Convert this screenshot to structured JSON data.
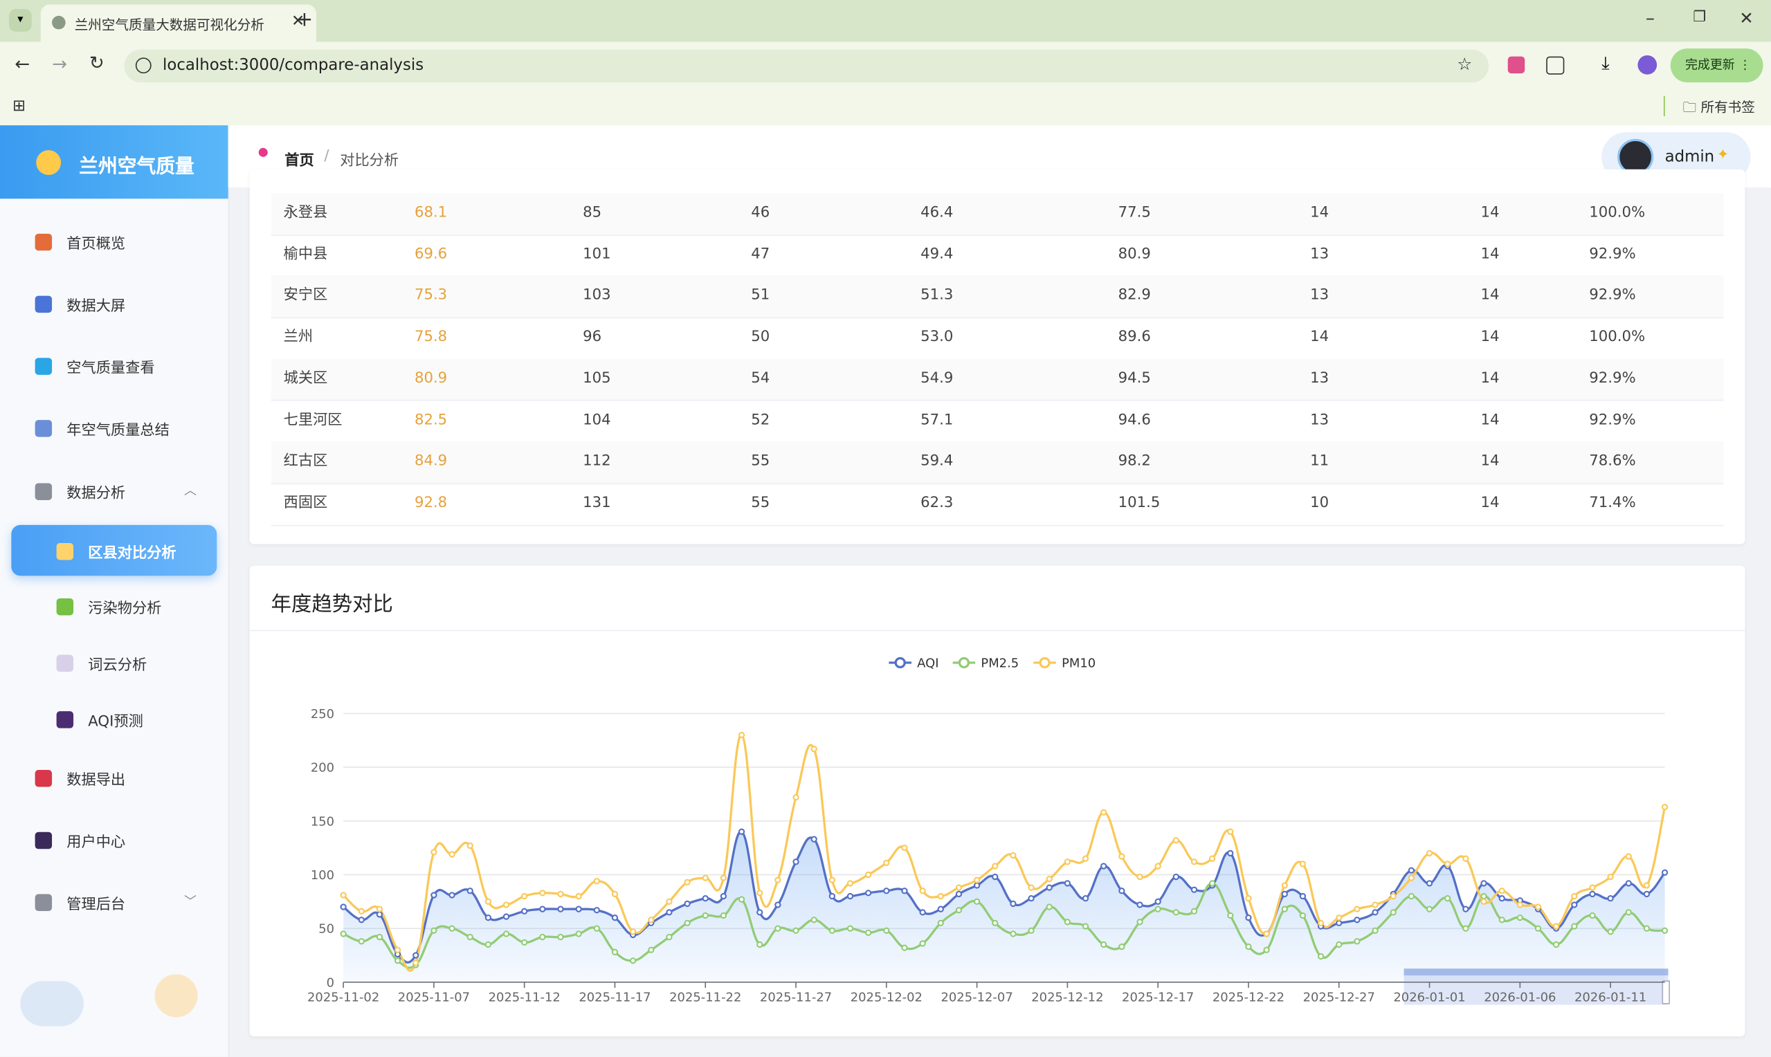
{
  "browser": {
    "tab_title": "兰州空气质量大数据可视化分析",
    "url": "localhost:3000/compare-analysis",
    "update_button": "完成更新",
    "bookmarks": "所有书签"
  },
  "sidebar": {
    "logo": "兰州空气质量",
    "items": [
      "首页概览",
      "数据大屏",
      "空气质量查看",
      "年空气质量总结",
      "数据分析",
      "区县对比分析",
      "污染物分析",
      "词云分析",
      "AQI预测",
      "数据导出",
      "用户中心",
      "管理后台"
    ]
  },
  "header": {
    "breadcrumb": [
      "首页",
      "对比分析"
    ],
    "user": "admin"
  },
  "table": {
    "rows": [
      [
        "永登县",
        "68.1",
        "85",
        "46",
        "46.4",
        "77.5",
        "14",
        "14",
        "100.0%"
      ],
      [
        "榆中县",
        "69.6",
        "101",
        "47",
        "49.4",
        "80.9",
        "13",
        "14",
        "92.9%"
      ],
      [
        "安宁区",
        "75.3",
        "103",
        "51",
        "51.3",
        "82.9",
        "13",
        "14",
        "92.9%"
      ],
      [
        "兰州",
        "75.8",
        "96",
        "50",
        "53.0",
        "89.6",
        "14",
        "14",
        "100.0%"
      ],
      [
        "城关区",
        "80.9",
        "105",
        "54",
        "54.9",
        "94.5",
        "13",
        "14",
        "92.9%"
      ],
      [
        "七里河区",
        "82.5",
        "104",
        "52",
        "57.1",
        "94.6",
        "13",
        "14",
        "92.9%"
      ],
      [
        "红古区",
        "84.9",
        "112",
        "55",
        "59.4",
        "98.2",
        "11",
        "14",
        "78.6%"
      ],
      [
        "西固区",
        "92.8",
        "131",
        "55",
        "62.3",
        "101.5",
        "10",
        "14",
        "71.4%"
      ]
    ]
  },
  "chart_data": {
    "type": "line",
    "title": "年度趋势对比",
    "categories": [
      "2025-11-02",
      null,
      null,
      null,
      null,
      "2025-11-07",
      null,
      null,
      null,
      null,
      "2025-11-12",
      null,
      null,
      null,
      null,
      "2025-11-17",
      null,
      null,
      null,
      null,
      "2025-11-22",
      null,
      null,
      null,
      null,
      "2025-11-27",
      null,
      null,
      null,
      null,
      "2025-12-02",
      null,
      null,
      null,
      null,
      "2025-12-07",
      null,
      null,
      null,
      null,
      "2025-12-12",
      null,
      null,
      null,
      null,
      "2025-12-17",
      null,
      null,
      null,
      null,
      "2025-12-22",
      null,
      null,
      null,
      null,
      "2025-12-27",
      null,
      null,
      null,
      null,
      "2026-01-01",
      null,
      null,
      null,
      null,
      "2026-01-06",
      null,
      null,
      null,
      null,
      "2026-01-11",
      null,
      null,
      null
    ],
    "series": [
      {
        "name": "AQI",
        "color": "#5470c6",
        "area": true,
        "values": [
          70,
          58,
          63,
          26,
          25,
          81,
          81,
          85,
          60,
          61,
          66,
          68,
          68,
          68,
          67,
          60,
          44,
          55,
          65,
          73,
          78,
          80,
          140,
          65,
          72,
          112,
          133,
          80,
          80,
          83,
          85,
          85,
          65,
          68,
          82,
          90,
          98,
          73,
          78,
          88,
          92,
          78,
          108,
          85,
          72,
          75,
          98,
          86,
          90,
          120,
          60,
          45,
          82,
          80,
          52,
          55,
          58,
          65,
          82,
          104,
          92,
          108,
          68,
          92,
          78,
          76,
          68,
          50,
          72,
          82,
          78,
          92,
          82,
          102
        ]
      },
      {
        "name": "PM2.5",
        "color": "#91cc75",
        "values": [
          45,
          38,
          42,
          20,
          16,
          48,
          50,
          42,
          35,
          45,
          37,
          42,
          42,
          45,
          50,
          28,
          20,
          30,
          42,
          55,
          62,
          62,
          77,
          35,
          50,
          48,
          58,
          48,
          50,
          46,
          48,
          32,
          36,
          55,
          67,
          75,
          55,
          45,
          48,
          70,
          56,
          52,
          35,
          33,
          56,
          68,
          65,
          66,
          92,
          62,
          33,
          30,
          68,
          62,
          24,
          35,
          38,
          48,
          65,
          80,
          68,
          78,
          50,
          80,
          58,
          60,
          50,
          35,
          52,
          62,
          47,
          65,
          50,
          48
        ]
      },
      {
        "name": "PM10",
        "color": "#fac858",
        "values": [
          81,
          66,
          68,
          30,
          18,
          121,
          119,
          127,
          75,
          72,
          80,
          83,
          82,
          80,
          94,
          82,
          47,
          58,
          75,
          93,
          97,
          97,
          230,
          83,
          95,
          172,
          217,
          95,
          92,
          100,
          111,
          125,
          85,
          80,
          88,
          95,
          108,
          118,
          88,
          96,
          112,
          115,
          158,
          117,
          98,
          108,
          132,
          112,
          115,
          140,
          78,
          45,
          90,
          110,
          55,
          60,
          68,
          72,
          80,
          97,
          120,
          110,
          115,
          75,
          85,
          72,
          70,
          52,
          80,
          88,
          98,
          117,
          90,
          163
        ]
      }
    ],
    "ylim": [
      0,
      250
    ],
    "yticks": [
      0,
      50,
      100,
      150,
      200,
      250
    ],
    "grid": true
  }
}
